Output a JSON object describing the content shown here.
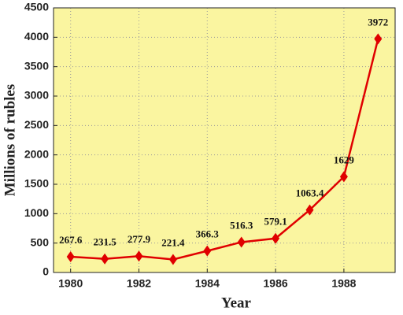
{
  "chart_data": {
    "type": "line",
    "x": [
      1980,
      1981,
      1982,
      1983,
      1984,
      1985,
      1986,
      1987,
      1988,
      1989
    ],
    "series": [
      {
        "name": "Millions of rubles",
        "color": "#e00000",
        "values": [
          267.6,
          231.5,
          277.9,
          221.4,
          366.3,
          516.3,
          579.1,
          1063.4,
          1629,
          3972
        ]
      }
    ],
    "xlabel": "Year",
    "ylabel": "Millions of rubles",
    "xlim": [
      1979.5,
      1989.5
    ],
    "xticks": [
      1980,
      1982,
      1984,
      1986,
      1988
    ],
    "ylim": [
      0,
      4500
    ],
    "yticks": [
      0,
      500,
      1000,
      1500,
      2000,
      2500,
      3000,
      3500,
      4000,
      4500
    ],
    "grid": true,
    "background": "#faf5a0"
  }
}
